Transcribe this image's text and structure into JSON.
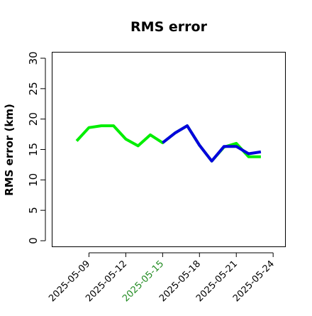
{
  "chart_data": {
    "type": "line",
    "title": "RMS error",
    "xlabel": "",
    "ylabel": "RMS error (km)",
    "ylim": [
      0,
      30
    ],
    "yticks": [
      0,
      5,
      10,
      15,
      20,
      25,
      30
    ],
    "xlim": [
      "2025-05-06",
      "2025-05-25"
    ],
    "xticks": [
      {
        "label": "2025-05-09",
        "color": "#000000"
      },
      {
        "label": "2025-05-12",
        "color": "#000000"
      },
      {
        "label": "2025-05-15",
        "color": "#228B22"
      },
      {
        "label": "2025-05-18",
        "color": "#000000"
      },
      {
        "label": "2025-05-21",
        "color": "#000000"
      },
      {
        "label": "2025-05-24",
        "color": "#000000"
      }
    ],
    "series": [
      {
        "color": "#00ee00",
        "x": [
          "2025-05-08",
          "2025-05-09",
          "2025-05-10",
          "2025-05-11",
          "2025-05-12",
          "2025-05-13",
          "2025-05-14",
          "2025-05-15",
          "2025-05-16",
          "2025-05-17",
          "2025-05-18",
          "2025-05-19",
          "2025-05-20",
          "2025-05-21",
          "2025-05-22",
          "2025-05-23"
        ],
        "values": [
          16.4,
          18.6,
          18.9,
          18.9,
          16.7,
          15.6,
          17.4,
          16.1,
          17.7,
          18.9,
          15.7,
          13.1,
          15.4,
          16.0,
          13.8,
          13.8
        ]
      },
      {
        "color": "#0000dd",
        "x": [
          "2025-05-15",
          "2025-05-16",
          "2025-05-17",
          "2025-05-18",
          "2025-05-19",
          "2025-05-20",
          "2025-05-21",
          "2025-05-22",
          "2025-05-23"
        ],
        "values": [
          16.1,
          17.7,
          18.9,
          15.7,
          13.1,
          15.5,
          15.5,
          14.3,
          14.6
        ]
      }
    ],
    "grid": false,
    "legend": "none"
  }
}
